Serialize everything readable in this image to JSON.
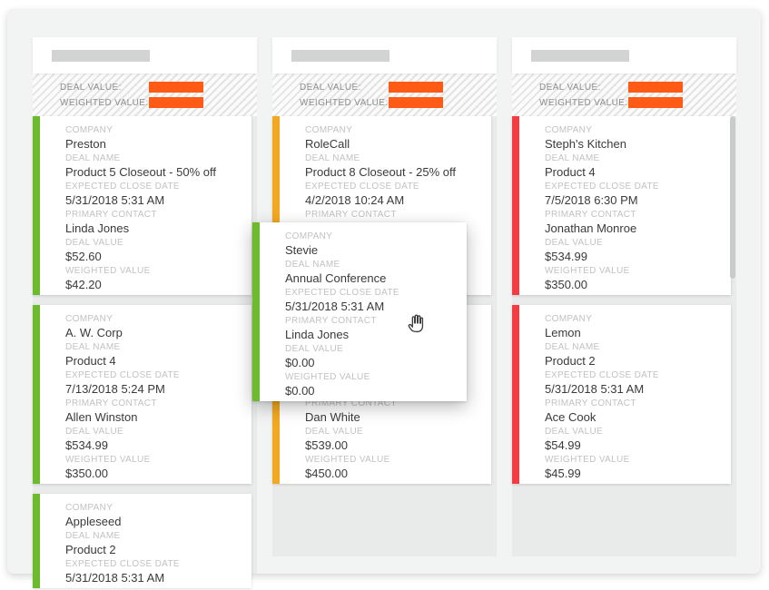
{
  "ui": {
    "summary": {
      "deal_value_label": "DEAL VALUE:",
      "weighted_value_label": "WEIGHTED VALUE:"
    },
    "field_labels": [
      "COMPANY",
      "DEAL NAME",
      "EXPECTED CLOSE DATE",
      "PRIMARY CONTACT",
      "DEAL VALUE",
      "WEIGHTED VALUE"
    ],
    "field_keys": [
      "company",
      "deal_name",
      "expected_close_date",
      "primary_contact",
      "deal_value",
      "weighted_value"
    ],
    "icons": {
      "cursor": "grab-hand-icon"
    }
  },
  "colors": {
    "redaction_bar": "#ff5a16",
    "title_placeholder": "#d2d3d3",
    "board_background": "#f2f3f3",
    "column_background": "#e9eaea",
    "card_background": "#ffffff",
    "column_accents": [
      "#6dbb2d",
      "#f3a821",
      "#f23d45"
    ],
    "label_text": "#c2c2c2",
    "value_text": "#3a3a3a",
    "summary_label_text": "#8e8e8e",
    "scrollbar_thumb": "#c9caca"
  },
  "columns": [
    {
      "accent_color": "#6dbb2d",
      "has_scrollbar": false,
      "cards": [
        {
          "company": "Preston",
          "deal_name": "Product 5 Closeout - 50% off",
          "expected_close_date": "5/31/2018 5:31 AM",
          "primary_contact": "Linda Jones",
          "deal_value": "$52.60",
          "weighted_value": "$42.20"
        },
        {
          "company": "A. W. Corp",
          "deal_name": "Product 4",
          "expected_close_date": "7/13/2018 5:24 PM",
          "primary_contact": "Allen Winston",
          "deal_value": "$534.99",
          "weighted_value": "$350.00"
        },
        {
          "company": "Appleseed",
          "deal_name": "Product 2",
          "expected_close_date": "5/31/2018 5:31 AM",
          "primary_contact": null,
          "deal_value": null,
          "weighted_value": null
        }
      ]
    },
    {
      "accent_color": "#f3a821",
      "has_scrollbar": false,
      "cards": [
        {
          "company": "RoleCall",
          "deal_name": "Product 8 Closeout - 25% off",
          "expected_close_date": "4/2/2018 10:24 AM",
          "primary_contact": "",
          "deal_value": "",
          "weighted_value": ""
        },
        {
          "company": "",
          "deal_name": "",
          "expected_close_date": "",
          "primary_contact": "Dan White",
          "deal_value": "$539.00",
          "weighted_value": "$450.00"
        }
      ]
    },
    {
      "accent_color": "#f23d45",
      "has_scrollbar": true,
      "cards": [
        {
          "company": "Steph's Kitchen",
          "deal_name": "Product 4",
          "expected_close_date": "7/5/2018 6:30 PM",
          "primary_contact": "Jonathan Monroe",
          "deal_value": "$534.99",
          "weighted_value": "$350.00"
        },
        {
          "company": "Lemon",
          "deal_name": "Product 2",
          "expected_close_date": "5/31/2018 5:31 AM",
          "primary_contact": "Ace Cook",
          "deal_value": "$54.99",
          "weighted_value": "$45.99"
        }
      ]
    }
  ],
  "drag_card": {
    "accent_color": "#6dbb2d",
    "company": "Stevie",
    "deal_name": "Annual Conference",
    "expected_close_date": "5/31/2018 5:31 AM",
    "primary_contact": "Linda Jones",
    "deal_value": "$0.00",
    "weighted_value": "$0.00"
  }
}
